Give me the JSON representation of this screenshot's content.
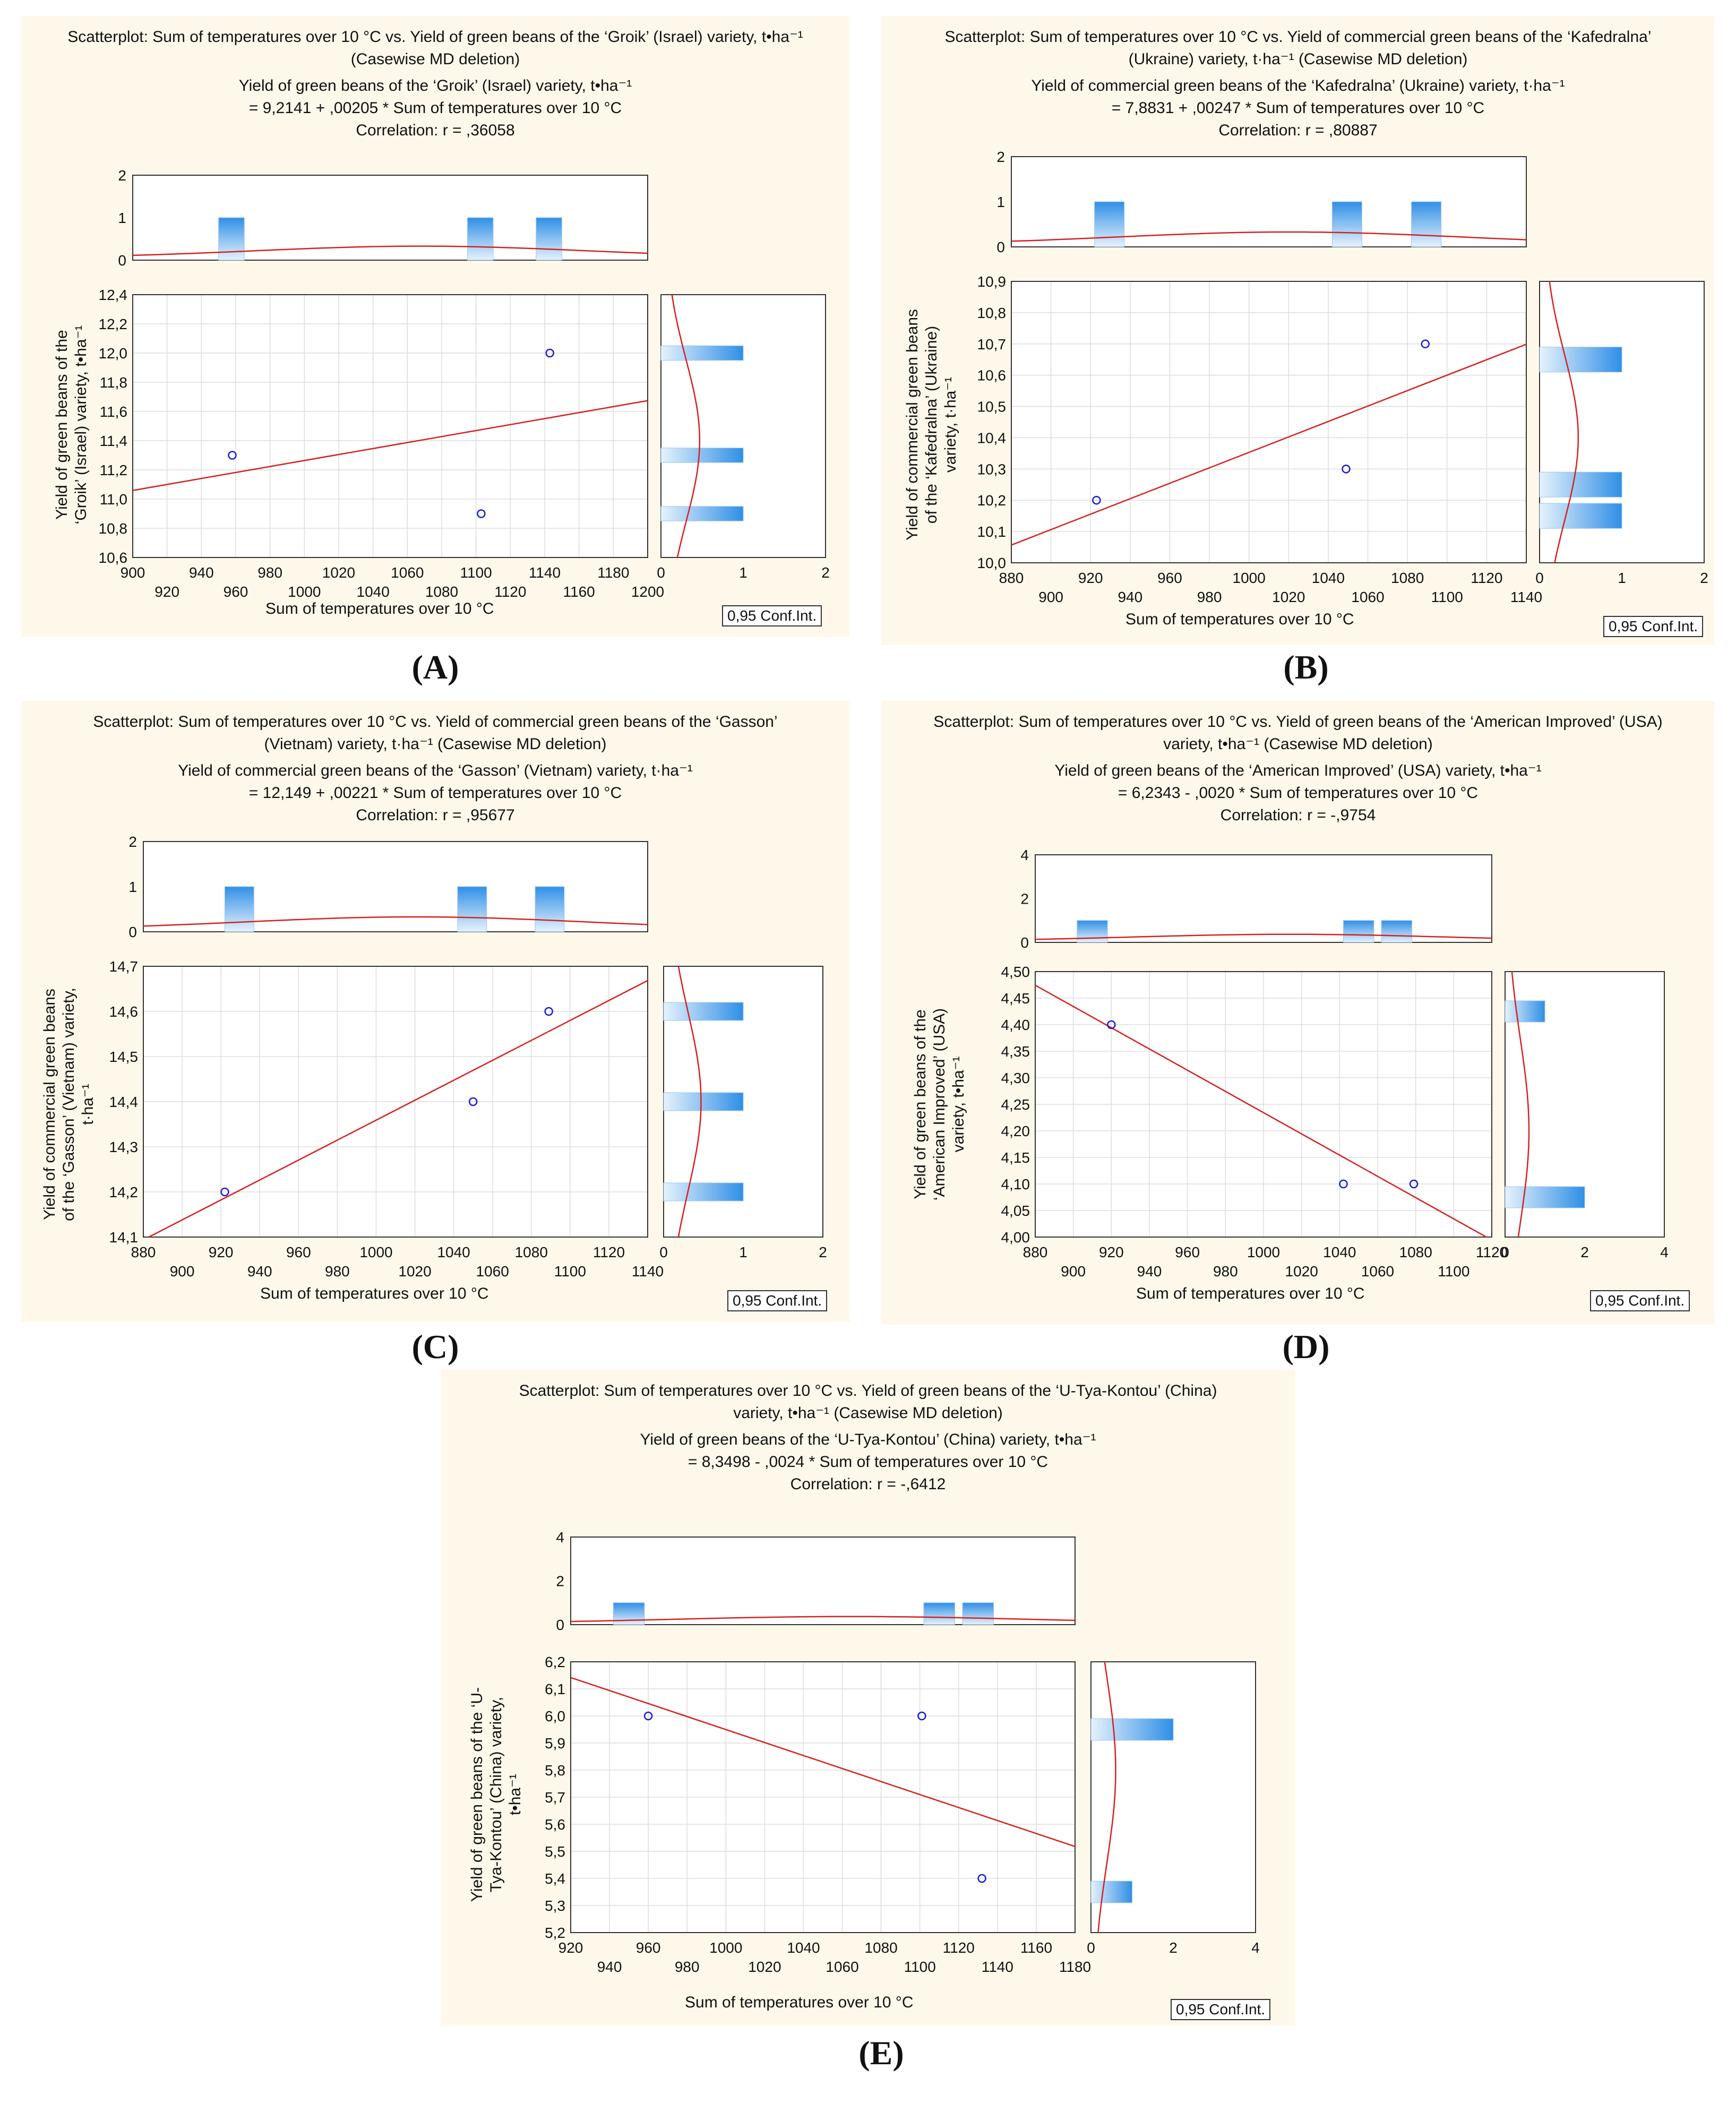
{
  "conf_label": "0,95 Conf.Int.",
  "chart_data": [
    {
      "id": "A",
      "letter": "(A)",
      "type": "scatter",
      "title_lines": [
        "Scatterplot: Sum of temperatures over 10 °C vs. Yield of green beans of the ‘Groik’ (Israel) variety, t•ha⁻¹",
        "(Casewise MD deletion)",
        "Yield of green beans of the ‘Groik’ (Israel) variety, t•ha⁻¹",
        "= 9,2141 + ,00205 * Sum of temperatures over 10 °C",
        "Correlation: r = ,36058"
      ],
      "xlabel": "Sum of temperatures over 10 °C",
      "ylabel_lines": [
        "Yield of green beans of the",
        "‘Groik’ (Israel) variety, t•ha⁻¹"
      ],
      "xlim": [
        900,
        1200
      ],
      "xticks_upper": [
        "900",
        "940",
        "980",
        "1020",
        "1060",
        "1100",
        "1140",
        "1180"
      ],
      "xticks_upper_values": [
        900,
        940,
        980,
        1020,
        1060,
        1100,
        1140,
        1180
      ],
      "xticks_lower": [
        "920",
        "960",
        "1000",
        "1040",
        "1080",
        "1120",
        "1160",
        "1200"
      ],
      "xticks_lower_values": [
        920,
        960,
        1000,
        1040,
        1080,
        1120,
        1160,
        1200
      ],
      "ylim": [
        10.6,
        12.4
      ],
      "yticks": [
        "10,6",
        "10,8",
        "11,0",
        "11,2",
        "11,4",
        "11,6",
        "11,8",
        "12,0",
        "12,2",
        "12,4"
      ],
      "yticks_values": [
        10.6,
        10.8,
        11.0,
        11.2,
        11.4,
        11.6,
        11.8,
        12.0,
        12.2,
        12.4
      ],
      "points": [
        [
          958,
          11.3
        ],
        [
          1103,
          10.9
        ],
        [
          1143,
          12.0
        ]
      ],
      "intercept": 9.2141,
      "slope": 0.00205,
      "hist_top_ylim": [
        0,
        2
      ],
      "hist_top_yticks": [
        "0",
        "1",
        "2"
      ],
      "hist_top_bins": [
        [
          950,
          965,
          1
        ],
        [
          1095,
          1110,
          1
        ],
        [
          1135,
          1150,
          1
        ]
      ],
      "hist_right_xlim": [
        0,
        2
      ],
      "hist_right_xticks": [
        "0",
        "1",
        "2"
      ],
      "hist_right_bins": [
        [
          10.85,
          10.95,
          1
        ],
        [
          11.25,
          11.35,
          1
        ],
        [
          11.95,
          12.05,
          1
        ]
      ]
    },
    {
      "id": "B",
      "letter": "(B)",
      "type": "scatter",
      "title_lines": [
        "Scatterplot: Sum of temperatures over 10 °C vs. Yield of commercial green beans of the ‘Kafedralna’",
        "(Ukraine) variety, t·ha⁻¹ (Casewise MD deletion)",
        "Yield of commercial green beans of the ‘Kafedralna’ (Ukraine) variety, t·ha⁻¹",
        "= 7,8831 + ,00247 * Sum of temperatures over 10 °C",
        "Correlation: r = ,80887"
      ],
      "xlabel": "Sum of temperatures over 10 °C",
      "ylabel_lines": [
        "Yield of commercial green beans",
        "of the ‘Kafedralna’ (Ukraine)",
        "variety, t·ha⁻¹"
      ],
      "xlim": [
        880,
        1140
      ],
      "xticks_upper": [
        "880",
        "920",
        "960",
        "1000",
        "1040",
        "1080",
        "1120"
      ],
      "xticks_upper_values": [
        880,
        920,
        960,
        1000,
        1040,
        1080,
        1120
      ],
      "xticks_lower": [
        "900",
        "940",
        "980",
        "1020",
        "1060",
        "1100",
        "1140"
      ],
      "xticks_lower_values": [
        900,
        940,
        980,
        1020,
        1060,
        1100,
        1140
      ],
      "ylim": [
        10.0,
        10.9
      ],
      "yticks": [
        "10,0",
        "10,1",
        "10,2",
        "10,3",
        "10,4",
        "10,5",
        "10,6",
        "10,7",
        "10,8",
        "10,9"
      ],
      "yticks_values": [
        10.0,
        10.1,
        10.2,
        10.3,
        10.4,
        10.5,
        10.6,
        10.7,
        10.8,
        10.9
      ],
      "points": [
        [
          923,
          10.2
        ],
        [
          1049,
          10.3
        ],
        [
          1089,
          10.7
        ]
      ],
      "intercept": 7.8831,
      "slope": 0.00247,
      "hist_top_ylim": [
        0,
        2
      ],
      "hist_top_yticks": [
        "0",
        "1",
        "2"
      ],
      "hist_top_bins": [
        [
          922,
          937,
          1
        ],
        [
          1042,
          1057,
          1
        ],
        [
          1082,
          1097,
          1
        ]
      ],
      "hist_right_xlim": [
        0,
        2
      ],
      "hist_right_xticks": [
        "0",
        "1",
        "2"
      ],
      "hist_right_bins": [
        [
          10.11,
          10.19,
          1
        ],
        [
          10.21,
          10.29,
          1
        ],
        [
          10.61,
          10.69,
          1
        ]
      ]
    },
    {
      "id": "C",
      "letter": "(C)",
      "type": "scatter",
      "title_lines": [
        "Scatterplot: Sum of temperatures over 10 °C vs. Yield of commercial green beans of the ‘Gasson’",
        "(Vietnam) variety, t·ha⁻¹ (Casewise MD deletion)",
        "Yield of commercial green beans of the ‘Gasson’ (Vietnam) variety, t·ha⁻¹",
        "= 12,149 + ,00221 * Sum of temperatures over 10 °C",
        "Correlation: r = ,95677"
      ],
      "xlabel": "Sum of temperatures over 10 °C",
      "ylabel_lines": [
        "Yield of commercial green beans",
        "of the ‘Gasson’ (Vietnam) variety,",
        "t·ha⁻¹"
      ],
      "xlim": [
        880,
        1140
      ],
      "xticks_upper": [
        "880",
        "920",
        "960",
        "1000",
        "1040",
        "1080",
        "1120"
      ],
      "xticks_upper_values": [
        880,
        920,
        960,
        1000,
        1040,
        1080,
        1120
      ],
      "xticks_lower": [
        "900",
        "940",
        "980",
        "1020",
        "1060",
        "1100",
        "1140"
      ],
      "xticks_lower_values": [
        900,
        940,
        980,
        1020,
        1060,
        1100,
        1140
      ],
      "ylim": [
        14.1,
        14.7
      ],
      "yticks": [
        "14,1",
        "14,2",
        "14,3",
        "14,4",
        "14,5",
        "14,6",
        "14,7"
      ],
      "yticks_values": [
        14.1,
        14.2,
        14.3,
        14.4,
        14.5,
        14.6,
        14.7
      ],
      "points": [
        [
          922,
          14.2
        ],
        [
          1050,
          14.4
        ],
        [
          1089,
          14.6
        ]
      ],
      "intercept": 12.149,
      "slope": 0.00221,
      "hist_top_ylim": [
        0,
        2
      ],
      "hist_top_yticks": [
        "0",
        "1",
        "2"
      ],
      "hist_top_bins": [
        [
          922,
          937,
          1
        ],
        [
          1042,
          1057,
          1
        ],
        [
          1082,
          1097,
          1
        ]
      ],
      "hist_right_xlim": [
        0,
        2
      ],
      "hist_right_xticks": [
        "0",
        "1",
        "2"
      ],
      "hist_right_bins": [
        [
          14.18,
          14.22,
          1
        ],
        [
          14.38,
          14.42,
          1
        ],
        [
          14.58,
          14.62,
          1
        ]
      ]
    },
    {
      "id": "D",
      "letter": "(D)",
      "type": "scatter",
      "title_lines": [
        "Scatterplot: Sum of temperatures over 10 °C vs. Yield of green beans of the ‘American Improved’ (USA)",
        "variety, t•ha⁻¹ (Casewise MD deletion)",
        "Yield of green beans of the ‘American Improved’ (USA) variety, t•ha⁻¹",
        "= 6,2343 - ,0020  * Sum of temperatures over 10 °C",
        "Correlation: r = -,9754"
      ],
      "xlabel": "Sum of temperatures over 10 °C",
      "ylabel_lines": [
        "Yield of green beans of the",
        "‘American Improved’ (USA)",
        "variety, t•ha⁻¹"
      ],
      "xlim": [
        880,
        1120
      ],
      "xticks_upper": [
        "880",
        "920",
        "960",
        "1000",
        "1040",
        "1080",
        "1120"
      ],
      "xticks_upper_values": [
        880,
        920,
        960,
        1000,
        1040,
        1080,
        1120
      ],
      "xticks_lower": [
        "900",
        "940",
        "980",
        "1020",
        "1060",
        "1100"
      ],
      "xticks_lower_values": [
        900,
        940,
        980,
        1020,
        1060,
        1100
      ],
      "ylim": [
        4.0,
        4.5
      ],
      "yticks": [
        "4,00",
        "4,05",
        "4,10",
        "4,15",
        "4,20",
        "4,25",
        "4,30",
        "4,35",
        "4,40",
        "4,45",
        "4,50"
      ],
      "yticks_values": [
        4.0,
        4.05,
        4.1,
        4.15,
        4.2,
        4.25,
        4.3,
        4.35,
        4.4,
        4.45,
        4.5
      ],
      "points": [
        [
          920,
          4.4
        ],
        [
          1042,
          4.1
        ],
        [
          1079,
          4.1
        ]
      ],
      "intercept": 6.2343,
      "slope": -0.002,
      "hist_top_ylim": [
        0,
        4
      ],
      "hist_top_yticks": [
        "0",
        "2",
        "4"
      ],
      "hist_top_bins": [
        [
          902,
          918,
          1
        ],
        [
          1042,
          1058,
          1
        ],
        [
          1062,
          1078,
          1
        ]
      ],
      "hist_right_xlim": [
        0,
        4
      ],
      "hist_right_xticks": [
        "0",
        "2",
        "4"
      ],
      "hist_right_bins": [
        [
          4.055,
          4.095,
          2
        ],
        [
          4.405,
          4.445,
          1
        ]
      ]
    },
    {
      "id": "E",
      "letter": "(E)",
      "type": "scatter",
      "title_lines": [
        "Scatterplot: Sum of temperatures over 10 °C vs. Yield of green beans of the ‘U-Tya-Kontou’ (China)",
        "variety, t•ha⁻¹ (Casewise MD deletion)",
        "Yield of green beans of the ‘U-Tya-Kontou’ (China) variety, t•ha⁻¹",
        "= 8,3498 - ,0024  * Sum of temperatures over 10 °C",
        "Correlation: r = -,6412"
      ],
      "xlabel": "Sum of temperatures over 10 °C",
      "ylabel_lines": [
        "Yield of green beans of the ‘U-",
        "Tya-Kontou’ (China) variety,",
        "t•ha⁻¹"
      ],
      "xlim": [
        920,
        1180
      ],
      "xticks_upper": [
        "920",
        "960",
        "1000",
        "1040",
        "1080",
        "1120",
        "1160"
      ],
      "xticks_upper_values": [
        920,
        960,
        1000,
        1040,
        1080,
        1120,
        1160
      ],
      "xticks_lower": [
        "940",
        "980",
        "1020",
        "1060",
        "1100",
        "1140",
        "1180"
      ],
      "xticks_lower_values": [
        940,
        980,
        1020,
        1060,
        1100,
        1140,
        1180
      ],
      "ylim": [
        5.2,
        6.2
      ],
      "yticks": [
        "5,2",
        "5,3",
        "5,4",
        "5,5",
        "5,6",
        "5,7",
        "5,8",
        "5,9",
        "6,0",
        "6,1",
        "6,2"
      ],
      "yticks_values": [
        5.2,
        5.3,
        5.4,
        5.5,
        5.6,
        5.7,
        5.8,
        5.9,
        6.0,
        6.1,
        6.2
      ],
      "points": [
        [
          960,
          6.0
        ],
        [
          1101,
          6.0
        ],
        [
          1132,
          5.4
        ]
      ],
      "intercept": 8.3498,
      "slope": -0.0024,
      "hist_top_ylim": [
        0,
        4
      ],
      "hist_top_yticks": [
        "0",
        "2",
        "4"
      ],
      "hist_top_bins": [
        [
          942,
          958,
          1
        ],
        [
          1102,
          1118,
          1
        ],
        [
          1122,
          1138,
          1
        ]
      ],
      "hist_right_xlim": [
        0,
        4
      ],
      "hist_right_xticks": [
        "0",
        "2",
        "4"
      ],
      "hist_right_bins": [
        [
          5.31,
          5.39,
          1
        ],
        [
          5.91,
          5.99,
          2
        ]
      ]
    }
  ]
}
